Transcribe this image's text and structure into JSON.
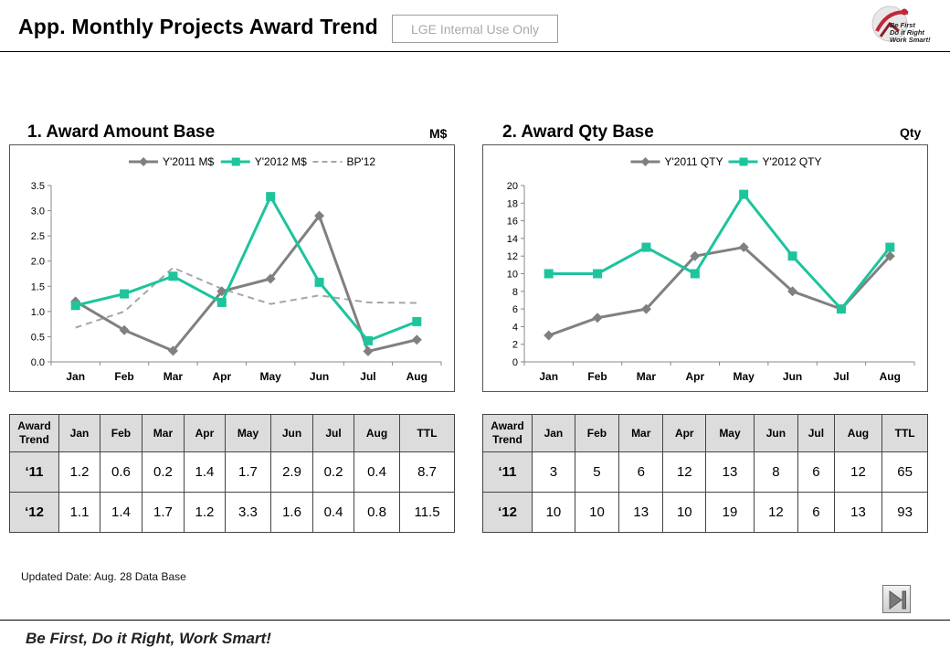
{
  "header": {
    "title": "App. Monthly Projects Award Trend",
    "badge": "LGE Internal Use Only",
    "logo_lines": [
      "Be First",
      "Do it Right",
      "Work Smart!"
    ]
  },
  "footer": {
    "updated": "Updated Date: Aug. 28 Data Base",
    "slogan": "Be First, Do it Right, Work Smart!"
  },
  "colors": {
    "y2011": "#808080",
    "y2012": "#1dc49c",
    "bp": "#a6a6a6",
    "grid_head": "#dcdcdc"
  },
  "chart_data": [
    {
      "type": "line",
      "title": "1. Award Amount Base",
      "unit": "M$",
      "categories": [
        "Jan",
        "Feb",
        "Mar",
        "Apr",
        "May",
        "Jun",
        "Jul",
        "Aug"
      ],
      "ylim": [
        0,
        3.5
      ],
      "yticks": [
        "0.0",
        "0.5",
        "1.0",
        "1.5",
        "2.0",
        "2.5",
        "3.0",
        "3.5"
      ],
      "grid": false,
      "legend_position": "top",
      "series": [
        {
          "name": "Y'2011 M$",
          "values": [
            1.2,
            0.63,
            0.22,
            1.4,
            1.65,
            2.9,
            0.21,
            0.44
          ],
          "marker": "diamond",
          "style": "solid"
        },
        {
          "name": "Y'2012 M$",
          "values": [
            1.12,
            1.35,
            1.7,
            1.18,
            3.28,
            1.58,
            0.42,
            0.8
          ],
          "marker": "square",
          "style": "solid"
        },
        {
          "name": "BP'12",
          "values": [
            0.68,
            1.0,
            1.87,
            1.45,
            1.15,
            1.32,
            1.18,
            1.17
          ],
          "marker": "none",
          "style": "dashed"
        }
      ],
      "table": {
        "corner": [
          "Award",
          "Trend"
        ],
        "headers": [
          "Jan",
          "Feb",
          "Mar",
          "Apr",
          "May",
          "Jun",
          "Jul",
          "Aug",
          "TTL"
        ],
        "rows": [
          {
            "label": "‘11",
            "values": [
              "1.2",
              "0.6",
              "0.2",
              "1.4",
              "1.7",
              "2.9",
              "0.2",
              "0.4",
              "8.7"
            ]
          },
          {
            "label": "‘12",
            "values": [
              "1.1",
              "1.4",
              "1.7",
              "1.2",
              "3.3",
              "1.6",
              "0.4",
              "0.8",
              "11.5"
            ]
          }
        ]
      }
    },
    {
      "type": "line",
      "title": "2. Award Qty Base",
      "unit": "Qty",
      "categories": [
        "Jan",
        "Feb",
        "Mar",
        "Apr",
        "May",
        "Jun",
        "Jul",
        "Aug"
      ],
      "ylim": [
        0,
        20
      ],
      "yticks": [
        "0",
        "2",
        "4",
        "6",
        "8",
        "10",
        "12",
        "14",
        "16",
        "18",
        "20"
      ],
      "grid": false,
      "legend_position": "top",
      "series": [
        {
          "name": "Y'2011 QTY",
          "values": [
            3,
            5,
            6,
            12,
            13,
            8,
            6,
            12
          ],
          "marker": "diamond",
          "style": "solid"
        },
        {
          "name": "Y'2012 QTY",
          "values": [
            10,
            10,
            13,
            10,
            19,
            12,
            6,
            13
          ],
          "marker": "square",
          "style": "solid"
        }
      ],
      "table": {
        "corner": [
          "Award",
          "Trend"
        ],
        "headers": [
          "Jan",
          "Feb",
          "Mar",
          "Apr",
          "May",
          "Jun",
          "Jul",
          "Aug",
          "TTL"
        ],
        "rows": [
          {
            "label": "‘11",
            "values": [
              "3",
              "5",
              "6",
              "12",
              "13",
              "8",
              "6",
              "12",
              "65"
            ]
          },
          {
            "label": "‘12",
            "values": [
              "10",
              "10",
              "13",
              "10",
              "19",
              "12",
              "6",
              "13",
              "93"
            ]
          }
        ]
      }
    }
  ]
}
